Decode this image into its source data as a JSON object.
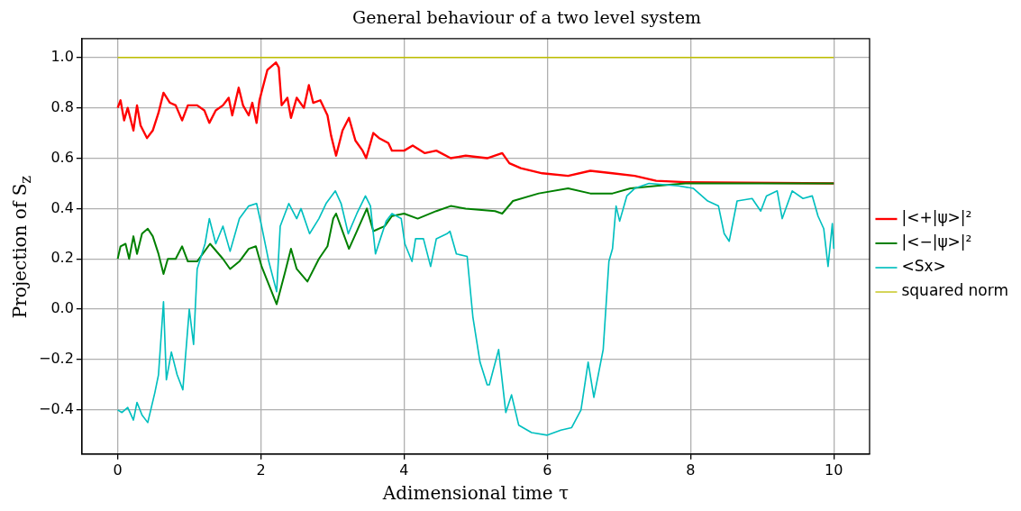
{
  "chart_data": {
    "type": "line",
    "title": "General behaviour of a two level system",
    "xlabel": "Adimensional time τ",
    "ylabel": "Projection of S$_{z}$",
    "xlim": [
      -0.5,
      10.5
    ],
    "ylim": [
      -0.575,
      1.075
    ],
    "xticks": [
      0,
      2,
      4,
      6,
      8,
      10
    ],
    "yticks": [
      {
        "value": -0.4,
        "label": "−0.4"
      },
      {
        "value": -0.2,
        "label": "−0.2"
      },
      {
        "value": 0,
        "label": "0.0"
      },
      {
        "value": 0.2,
        "label": "0.2"
      },
      {
        "value": 0.4,
        "label": "0.4"
      },
      {
        "value": 0.6,
        "label": "0.6"
      },
      {
        "value": 0.8,
        "label": "0.8"
      },
      {
        "value": 1,
        "label": "1.0"
      }
    ],
    "grid": true,
    "legend": "right",
    "marker": "none",
    "line_style": "solid",
    "series": [
      {
        "name": "|<+|ψ>|²",
        "color": "#ff0000",
        "x": [
          0,
          0.04,
          0.09,
          0.14,
          0.22,
          0.27,
          0.32,
          0.41,
          0.49,
          0.57,
          0.64,
          0.73,
          0.81,
          0.9,
          0.98,
          1.11,
          1.21,
          1.28,
          1.37,
          1.47,
          1.55,
          1.6,
          1.69,
          1.75,
          1.83,
          1.88,
          1.94,
          1.98,
          2.09,
          2.21,
          2.25,
          2.29,
          2.37,
          2.42,
          2.5,
          2.6,
          2.67,
          2.73,
          2.83,
          2.93,
          2.98,
          3.05,
          3.14,
          3.23,
          3.32,
          3.42,
          3.47,
          3.57,
          3.65,
          3.78,
          3.83,
          4,
          4.12,
          4.29,
          4.45,
          4.65,
          4.86,
          5.16,
          5.37,
          5.47,
          5.63,
          5.93,
          6.29,
          6.6,
          6.91,
          7.22,
          7.52,
          7.93,
          10
        ],
        "values": [
          0.8,
          0.83,
          0.75,
          0.8,
          0.71,
          0.81,
          0.73,
          0.68,
          0.71,
          0.78,
          0.86,
          0.82,
          0.81,
          0.75,
          0.81,
          0.81,
          0.79,
          0.74,
          0.79,
          0.81,
          0.84,
          0.77,
          0.88,
          0.81,
          0.77,
          0.82,
          0.74,
          0.83,
          0.95,
          0.98,
          0.96,
          0.81,
          0.84,
          0.76,
          0.84,
          0.8,
          0.89,
          0.82,
          0.83,
          0.77,
          0.69,
          0.61,
          0.71,
          0.76,
          0.67,
          0.63,
          0.6,
          0.7,
          0.68,
          0.66,
          0.63,
          0.63,
          0.65,
          0.62,
          0.63,
          0.6,
          0.61,
          0.6,
          0.62,
          0.58,
          0.56,
          0.54,
          0.53,
          0.55,
          0.54,
          0.53,
          0.51,
          0.505,
          0.5
        ]
      },
      {
        "name": "|<−|ψ>|²",
        "color": "#008000",
        "x": [
          0,
          0.04,
          0.11,
          0.16,
          0.22,
          0.27,
          0.34,
          0.42,
          0.49,
          0.57,
          0.64,
          0.7,
          0.81,
          0.9,
          0.98,
          1.11,
          1.29,
          1.47,
          1.57,
          1.7,
          1.83,
          1.93,
          2.01,
          2.22,
          2.34,
          2.42,
          2.5,
          2.65,
          2.81,
          2.93,
          3.01,
          3.05,
          3.14,
          3.23,
          3.34,
          3.48,
          3.57,
          3.73,
          3.83,
          4,
          4.19,
          4.45,
          4.65,
          4.86,
          5.27,
          5.37,
          5.52,
          5.88,
          6.29,
          6.6,
          6.91,
          7.16,
          7.52,
          7.93,
          10
        ],
        "values": [
          0.2,
          0.25,
          0.26,
          0.2,
          0.29,
          0.22,
          0.3,
          0.32,
          0.29,
          0.22,
          0.14,
          0.2,
          0.2,
          0.25,
          0.19,
          0.19,
          0.26,
          0.2,
          0.16,
          0.19,
          0.24,
          0.25,
          0.17,
          0.02,
          0.15,
          0.24,
          0.16,
          0.11,
          0.2,
          0.25,
          0.36,
          0.38,
          0.31,
          0.24,
          0.31,
          0.4,
          0.31,
          0.33,
          0.37,
          0.38,
          0.36,
          0.39,
          0.41,
          0.4,
          0.39,
          0.38,
          0.43,
          0.46,
          0.48,
          0.46,
          0.46,
          0.48,
          0.49,
          0.5,
          0.5
        ]
      },
      {
        "name": "<Sx>",
        "color": "#00bfbf",
        "x": [
          0,
          0.06,
          0.14,
          0.22,
          0.27,
          0.34,
          0.42,
          0.52,
          0.57,
          0.64,
          0.68,
          0.75,
          0.83,
          0.91,
          1,
          1.06,
          1.11,
          1.22,
          1.28,
          1.37,
          1.47,
          1.57,
          1.7,
          1.83,
          1.94,
          2.01,
          2.11,
          2.22,
          2.27,
          2.39,
          2.5,
          2.56,
          2.68,
          2.81,
          2.91,
          3.04,
          3.12,
          3.22,
          3.34,
          3.46,
          3.53,
          3.6,
          3.68,
          3.75,
          3.83,
          3.96,
          4.01,
          4.11,
          4.16,
          4.27,
          4.37,
          4.45,
          4.6,
          4.64,
          4.73,
          4.88,
          4.96,
          5.06,
          5.16,
          5.19,
          5.32,
          5.42,
          5.5,
          5.6,
          5.78,
          6,
          6.19,
          6.34,
          6.47,
          6.57,
          6.65,
          6.78,
          6.86,
          6.91,
          6.96,
          7.01,
          7.11,
          7.22,
          7.42,
          7.83,
          8.04,
          8.24,
          8.39,
          8.47,
          8.54,
          8.65,
          8.86,
          8.98,
          9.06,
          9.21,
          9.28,
          9.42,
          9.57,
          9.7,
          9.78,
          9.86,
          9.92,
          9.98,
          10
        ],
        "values": [
          -0.4,
          -0.41,
          -0.39,
          -0.44,
          -0.37,
          -0.42,
          -0.45,
          -0.33,
          -0.26,
          0.03,
          -0.28,
          -0.17,
          -0.26,
          -0.32,
          0,
          -0.14,
          0.16,
          0.26,
          0.36,
          0.26,
          0.33,
          0.23,
          0.36,
          0.41,
          0.42,
          0.33,
          0.19,
          0.07,
          0.33,
          0.42,
          0.36,
          0.4,
          0.3,
          0.36,
          0.42,
          0.47,
          0.42,
          0.3,
          0.38,
          0.45,
          0.41,
          0.22,
          0.29,
          0.35,
          0.38,
          0.36,
          0.26,
          0.19,
          0.28,
          0.28,
          0.17,
          0.28,
          0.3,
          0.31,
          0.22,
          0.21,
          -0.03,
          -0.21,
          -0.3,
          -0.3,
          -0.16,
          -0.41,
          -0.34,
          -0.46,
          -0.49,
          -0.5,
          -0.48,
          -0.47,
          -0.4,
          -0.21,
          -0.35,
          -0.16,
          0.19,
          0.24,
          0.41,
          0.35,
          0.45,
          0.48,
          0.5,
          0.49,
          0.48,
          0.43,
          0.41,
          0.3,
          0.27,
          0.43,
          0.44,
          0.39,
          0.45,
          0.47,
          0.36,
          0.47,
          0.44,
          0.45,
          0.37,
          0.32,
          0.17,
          0.34,
          0.24
        ]
      },
      {
        "name": "squared norm",
        "color": "#bfbf00",
        "x": [
          0,
          10
        ],
        "values": [
          1,
          1
        ]
      }
    ]
  }
}
